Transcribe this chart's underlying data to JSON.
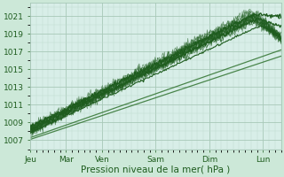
{
  "title": "",
  "xlabel": "Pression niveau de la mer( hPa )",
  "bg_color": "#cce8d8",
  "plot_bg_color": "#d8eee8",
  "grid_color_major": "#a8c8b8",
  "grid_color_minor": "#c0ddd0",
  "line_color_dark": "#1e5c1e",
  "line_color_light": "#3a7a3a",
  "yticks": [
    1007,
    1009,
    1011,
    1013,
    1015,
    1017,
    1019,
    1021
  ],
  "xtick_labels": [
    "Jeu",
    "Mar",
    "Ven",
    "Sam",
    "Dim",
    "Lun"
  ],
  "ylim": [
    1006.0,
    1022.5
  ],
  "xlim": [
    0.0,
    7.0
  ],
  "xlabel_fontsize": 7.5,
  "tick_fontsize": 6.5
}
